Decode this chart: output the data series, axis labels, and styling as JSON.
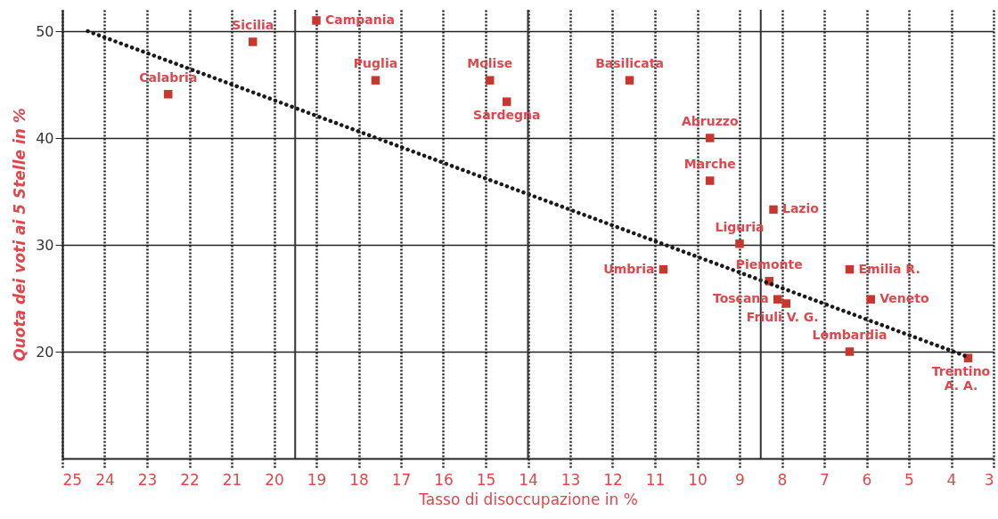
{
  "chart_data": {
    "type": "scatter",
    "xlabel": "Tasso di disoccupazione in %",
    "ylabel": "Quota dei voti ai 5 Stelle in %",
    "xlim": [
      25,
      3
    ],
    "xticks": [
      25,
      24,
      23,
      22,
      21,
      20,
      19,
      18,
      17,
      16,
      15,
      14,
      13,
      12,
      11,
      10,
      9,
      8,
      7,
      6,
      5,
      4,
      3
    ],
    "ylim": [
      10,
      52
    ],
    "yticks": [
      20,
      30,
      40,
      50
    ],
    "grid": true,
    "marker": "square",
    "series": [
      {
        "color": "#c8372d",
        "x": [
          22.5,
          20.5,
          19.0,
          17.6,
          14.9,
          14.5,
          11.6,
          9.7,
          9.7,
          8.2,
          9.0,
          10.8,
          8.3,
          8.1,
          7.9,
          6.4,
          5.9,
          6.4,
          3.6
        ],
        "values": [
          44.1,
          49.0,
          51.0,
          45.4,
          45.4,
          43.4,
          45.4,
          40.0,
          36.0,
          33.3,
          30.1,
          27.7,
          26.6,
          24.9,
          24.5,
          27.7,
          24.9,
          20.0,
          19.4
        ]
      },
      {
        "type": "line",
        "color": "#1a1a1a",
        "line_style": "dotted",
        "marker": "none",
        "x": [
          24.4,
          3.6
        ],
        "values": [
          50.0,
          19.5
        ]
      }
    ],
    "ref_lines": [
      {
        "axis": "x",
        "value": 19.5,
        "color": "#333333"
      },
      {
        "axis": "x",
        "value": 14,
        "color": "#333333"
      },
      {
        "axis": "x",
        "value": 8.5,
        "color": "#333333"
      }
    ],
    "annotations": [
      {
        "text": "Calabria",
        "x": 22.5,
        "y": 44.1
      },
      {
        "text": "Sicilia",
        "x": 20.5,
        "y": 49.0
      },
      {
        "text": "Campania",
        "x": 19.0,
        "y": 51.0
      },
      {
        "text": "Puglia",
        "x": 17.6,
        "y": 45.4
      },
      {
        "text": "Molise",
        "x": 14.9,
        "y": 45.4
      },
      {
        "text": "Sardegna",
        "x": 14.5,
        "y": 43.4
      },
      {
        "text": "Basilicata",
        "x": 11.6,
        "y": 45.4
      },
      {
        "text": "Abruzzo",
        "x": 9.7,
        "y": 40.0
      },
      {
        "text": "Marche",
        "x": 9.7,
        "y": 36.0
      },
      {
        "text": "Lazio",
        "x": 8.2,
        "y": 33.3
      },
      {
        "text": "Liguria",
        "x": 9.0,
        "y": 30.1
      },
      {
        "text": "Umbria",
        "x": 10.8,
        "y": 27.7
      },
      {
        "text": "Piemonte",
        "x": 8.3,
        "y": 26.6
      },
      {
        "text": "Toscana",
        "x": 8.1,
        "y": 24.9
      },
      {
        "text": "Friuli V. G.",
        "x": 7.9,
        "y": 24.5
      },
      {
        "text": "Emilia R.",
        "x": 6.4,
        "y": 27.7
      },
      {
        "text": "Veneto",
        "x": 5.9,
        "y": 24.9
      },
      {
        "text": "Lombardia",
        "x": 6.4,
        "y": 20.0
      },
      {
        "text": "Trentino\nA. A.",
        "x": 3.6,
        "y": 19.4
      }
    ]
  }
}
